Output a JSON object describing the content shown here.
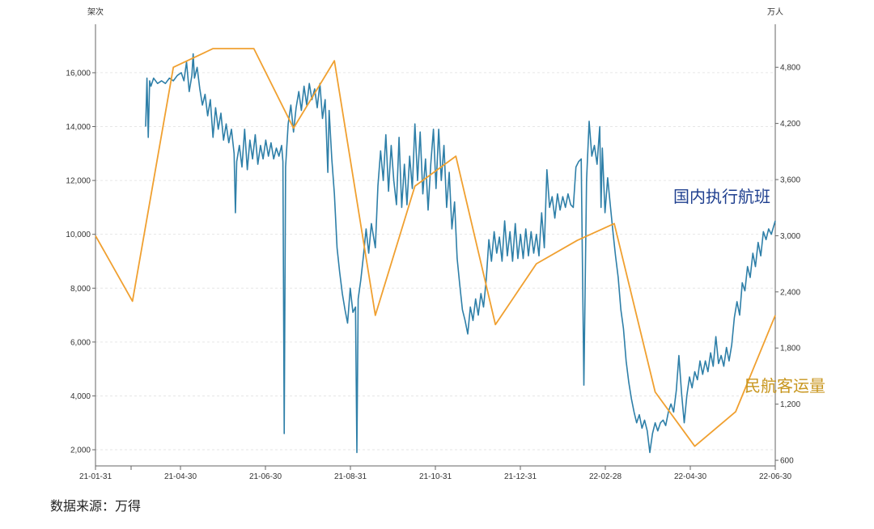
{
  "chart_data": {
    "type": "line",
    "left_axis": {
      "unit": "架次",
      "ticks": [
        2000,
        4000,
        6000,
        8000,
        10000,
        12000,
        14000,
        16000
      ],
      "tick_labels": [
        "2,000",
        "4,000",
        "6,000",
        "8,000",
        "10,000",
        "12,000",
        "14,000",
        "16,000"
      ],
      "range": [
        1400,
        17800
      ]
    },
    "right_axis": {
      "unit": "万人",
      "ticks": [
        600,
        1200,
        1800,
        2400,
        3000,
        3600,
        4200,
        4800
      ],
      "tick_labels": [
        "600",
        "1,200",
        "1,800",
        "2,400",
        "3,000",
        "3,600",
        "4,200",
        "4,800"
      ],
      "range": [
        540,
        5260
      ]
    },
    "x_tick_labels": [
      "21-01-31",
      "21-04-30",
      "21-06-30",
      "21-08-31",
      "21-10-31",
      "21-12-31",
      "22-02-28",
      "22-04-30",
      "22-06-30"
    ],
    "x_range": [
      "2021-01-31",
      "2022-06-30"
    ],
    "series": [
      {
        "name": "国内执行航班",
        "axis": "left",
        "color": "#2e7fa8",
        "points": [
          [
            "2021-03-10",
            14000
          ],
          [
            "2021-03-11",
            15800
          ],
          [
            "2021-03-12",
            13600
          ],
          [
            "2021-03-13",
            15700
          ],
          [
            "2021-03-14",
            15500
          ],
          [
            "2021-03-16",
            15800
          ],
          [
            "2021-03-19",
            15600
          ],
          [
            "2021-03-22",
            15700
          ],
          [
            "2021-03-25",
            15600
          ],
          [
            "2021-03-28",
            15800
          ],
          [
            "2021-03-31",
            15700
          ],
          [
            "2021-04-03",
            15900
          ],
          [
            "2021-04-06",
            16000
          ],
          [
            "2021-04-08",
            15700
          ],
          [
            "2021-04-10",
            16400
          ],
          [
            "2021-04-12",
            15300
          ],
          [
            "2021-04-14",
            15900
          ],
          [
            "2021-04-15",
            16700
          ],
          [
            "2021-04-16",
            15800
          ],
          [
            "2021-04-18",
            16200
          ],
          [
            "2021-04-20",
            15400
          ],
          [
            "2021-04-22",
            14800
          ],
          [
            "2021-04-24",
            15200
          ],
          [
            "2021-04-26",
            14400
          ],
          [
            "2021-04-28",
            15000
          ],
          [
            "2021-04-30",
            13600
          ],
          [
            "2021-05-02",
            14700
          ],
          [
            "2021-05-04",
            13900
          ],
          [
            "2021-05-06",
            14500
          ],
          [
            "2021-05-08",
            13500
          ],
          [
            "2021-05-10",
            14100
          ],
          [
            "2021-05-12",
            13400
          ],
          [
            "2021-05-14",
            13900
          ],
          [
            "2021-05-16",
            13000
          ],
          [
            "2021-05-17",
            10800
          ],
          [
            "2021-05-18",
            12700
          ],
          [
            "2021-05-20",
            13300
          ],
          [
            "2021-05-22",
            12500
          ],
          [
            "2021-05-24",
            13900
          ],
          [
            "2021-05-26",
            12400
          ],
          [
            "2021-05-28",
            13500
          ],
          [
            "2021-05-30",
            12800
          ],
          [
            "2021-06-01",
            13700
          ],
          [
            "2021-06-03",
            12600
          ],
          [
            "2021-06-05",
            13300
          ],
          [
            "2021-06-07",
            12800
          ],
          [
            "2021-06-09",
            13500
          ],
          [
            "2021-06-11",
            12900
          ],
          [
            "2021-06-13",
            13400
          ],
          [
            "2021-06-15",
            12800
          ],
          [
            "2021-06-17",
            13200
          ],
          [
            "2021-06-19",
            12900
          ],
          [
            "2021-06-21",
            13300
          ],
          [
            "2021-06-22",
            12700
          ],
          [
            "2021-06-23",
            2600
          ],
          [
            "2021-06-24",
            12500
          ],
          [
            "2021-06-26",
            14100
          ],
          [
            "2021-06-28",
            14800
          ],
          [
            "2021-06-30",
            13800
          ],
          [
            "2021-07-02",
            14700
          ],
          [
            "2021-07-04",
            15300
          ],
          [
            "2021-07-06",
            14600
          ],
          [
            "2021-07-08",
            15500
          ],
          [
            "2021-07-10",
            14800
          ],
          [
            "2021-07-12",
            15600
          ],
          [
            "2021-07-14",
            15000
          ],
          [
            "2021-07-16",
            15400
          ],
          [
            "2021-07-18",
            14700
          ],
          [
            "2021-07-20",
            15600
          ],
          [
            "2021-07-22",
            14300
          ],
          [
            "2021-07-24",
            15000
          ],
          [
            "2021-07-26",
            12300
          ],
          [
            "2021-07-27",
            14600
          ],
          [
            "2021-07-29",
            12800
          ],
          [
            "2021-07-31",
            11500
          ],
          [
            "2021-08-02",
            9500
          ],
          [
            "2021-08-04",
            8600
          ],
          [
            "2021-08-06",
            7800
          ],
          [
            "2021-08-08",
            7200
          ],
          [
            "2021-08-10",
            6700
          ],
          [
            "2021-08-12",
            8000
          ],
          [
            "2021-08-14",
            7100
          ],
          [
            "2021-08-16",
            7300
          ],
          [
            "2021-08-17",
            1900
          ],
          [
            "2021-08-18",
            7600
          ],
          [
            "2021-08-20",
            8300
          ],
          [
            "2021-08-22",
            9200
          ],
          [
            "2021-08-24",
            10200
          ],
          [
            "2021-08-26",
            9300
          ],
          [
            "2021-08-28",
            10400
          ],
          [
            "2021-08-31",
            9500
          ],
          [
            "2021-09-02",
            11800
          ],
          [
            "2021-09-04",
            13100
          ],
          [
            "2021-09-06",
            12000
          ],
          [
            "2021-09-08",
            13700
          ],
          [
            "2021-09-10",
            11600
          ],
          [
            "2021-09-12",
            13300
          ],
          [
            "2021-09-14",
            12000
          ],
          [
            "2021-09-16",
            11100
          ],
          [
            "2021-09-18",
            13600
          ],
          [
            "2021-09-20",
            11000
          ],
          [
            "2021-09-22",
            12600
          ],
          [
            "2021-09-24",
            11100
          ],
          [
            "2021-09-26",
            12900
          ],
          [
            "2021-09-28",
            11700
          ],
          [
            "2021-09-30",
            14100
          ],
          [
            "2021-10-02",
            12000
          ],
          [
            "2021-10-04",
            13800
          ],
          [
            "2021-10-06",
            11500
          ],
          [
            "2021-10-08",
            12800
          ],
          [
            "2021-10-10",
            10900
          ],
          [
            "2021-10-12",
            12600
          ],
          [
            "2021-10-14",
            13900
          ],
          [
            "2021-10-16",
            11700
          ],
          [
            "2021-10-18",
            13900
          ],
          [
            "2021-10-20",
            12000
          ],
          [
            "2021-10-22",
            13300
          ],
          [
            "2021-10-24",
            11000
          ],
          [
            "2021-10-26",
            12300
          ],
          [
            "2021-10-28",
            10200
          ],
          [
            "2021-10-30",
            11200
          ],
          [
            "2021-11-01",
            9100
          ],
          [
            "2021-11-03",
            8100
          ],
          [
            "2021-11-05",
            7200
          ],
          [
            "2021-11-07",
            6800
          ],
          [
            "2021-11-09",
            6300
          ],
          [
            "2021-11-11",
            7300
          ],
          [
            "2021-11-13",
            6800
          ],
          [
            "2021-11-15",
            7600
          ],
          [
            "2021-11-17",
            7000
          ],
          [
            "2021-11-19",
            7800
          ],
          [
            "2021-11-21",
            7300
          ],
          [
            "2021-11-23",
            8300
          ],
          [
            "2021-11-25",
            9800
          ],
          [
            "2021-11-27",
            9000
          ],
          [
            "2021-11-29",
            10100
          ],
          [
            "2021-12-01",
            9300
          ],
          [
            "2021-12-03",
            9900
          ],
          [
            "2021-12-05",
            9000
          ],
          [
            "2021-12-07",
            10500
          ],
          [
            "2021-12-09",
            9200
          ],
          [
            "2021-12-11",
            10100
          ],
          [
            "2021-12-13",
            9000
          ],
          [
            "2021-12-15",
            10400
          ],
          [
            "2021-12-17",
            9100
          ],
          [
            "2021-12-19",
            10000
          ],
          [
            "2021-12-21",
            9100
          ],
          [
            "2021-12-23",
            10200
          ],
          [
            "2021-12-25",
            9200
          ],
          [
            "2021-12-27",
            10100
          ],
          [
            "2021-12-29",
            9300
          ],
          [
            "2021-12-31",
            10000
          ],
          [
            "2022-01-02",
            9200
          ],
          [
            "2022-01-04",
            10800
          ],
          [
            "2022-01-06",
            9500
          ],
          [
            "2022-01-08",
            12400
          ],
          [
            "2022-01-10",
            11000
          ],
          [
            "2022-01-12",
            11400
          ],
          [
            "2022-01-14",
            10600
          ],
          [
            "2022-01-16",
            11500
          ],
          [
            "2022-01-18",
            10900
          ],
          [
            "2022-01-20",
            11400
          ],
          [
            "2022-01-22",
            11000
          ],
          [
            "2022-01-24",
            11500
          ],
          [
            "2022-01-26",
            11100
          ],
          [
            "2022-01-28",
            11000
          ],
          [
            "2022-01-30",
            12500
          ],
          [
            "2022-02-01",
            12700
          ],
          [
            "2022-02-03",
            12800
          ],
          [
            "2022-02-05",
            4400
          ],
          [
            "2022-02-07",
            12000
          ],
          [
            "2022-02-09",
            14200
          ],
          [
            "2022-02-11",
            12900
          ],
          [
            "2022-02-13",
            13300
          ],
          [
            "2022-02-15",
            12600
          ],
          [
            "2022-02-17",
            14000
          ],
          [
            "2022-02-18",
            11000
          ],
          [
            "2022-02-19",
            13200
          ],
          [
            "2022-02-21",
            10800
          ],
          [
            "2022-02-23",
            12100
          ],
          [
            "2022-02-25",
            11100
          ],
          [
            "2022-02-27",
            10100
          ],
          [
            "2022-03-01",
            9200
          ],
          [
            "2022-03-03",
            8400
          ],
          [
            "2022-03-05",
            7200
          ],
          [
            "2022-03-07",
            6500
          ],
          [
            "2022-03-09",
            5300
          ],
          [
            "2022-03-11",
            4500
          ],
          [
            "2022-03-13",
            3900
          ],
          [
            "2022-03-15",
            3400
          ],
          [
            "2022-03-17",
            3000
          ],
          [
            "2022-03-19",
            3300
          ],
          [
            "2022-03-21",
            2800
          ],
          [
            "2022-03-23",
            3100
          ],
          [
            "2022-03-25",
            2700
          ],
          [
            "2022-03-27",
            1900
          ],
          [
            "2022-03-29",
            2600
          ],
          [
            "2022-03-31",
            3000
          ],
          [
            "2022-04-02",
            2700
          ],
          [
            "2022-04-04",
            3000
          ],
          [
            "2022-04-06",
            3100
          ],
          [
            "2022-04-08",
            2900
          ],
          [
            "2022-04-10",
            3400
          ],
          [
            "2022-04-12",
            3700
          ],
          [
            "2022-04-14",
            3400
          ],
          [
            "2022-04-16",
            4200
          ],
          [
            "2022-04-18",
            5500
          ],
          [
            "2022-04-20",
            4100
          ],
          [
            "2022-04-22",
            3000
          ],
          [
            "2022-04-24",
            4000
          ],
          [
            "2022-04-26",
            4700
          ],
          [
            "2022-04-28",
            4300
          ],
          [
            "2022-04-30",
            4900
          ],
          [
            "2022-05-02",
            4600
          ],
          [
            "2022-05-04",
            5300
          ],
          [
            "2022-05-06",
            4800
          ],
          [
            "2022-05-08",
            5300
          ],
          [
            "2022-05-10",
            4900
          ],
          [
            "2022-05-12",
            5600
          ],
          [
            "2022-05-14",
            5100
          ],
          [
            "2022-05-16",
            6200
          ],
          [
            "2022-05-18",
            5200
          ],
          [
            "2022-05-20",
            5500
          ],
          [
            "2022-05-22",
            5100
          ],
          [
            "2022-05-24",
            5800
          ],
          [
            "2022-05-26",
            5300
          ],
          [
            "2022-05-28",
            5900
          ],
          [
            "2022-05-30",
            6900
          ],
          [
            "2022-06-01",
            7500
          ],
          [
            "2022-06-03",
            7000
          ],
          [
            "2022-06-05",
            8200
          ],
          [
            "2022-06-07",
            7900
          ],
          [
            "2022-06-09",
            8800
          ],
          [
            "2022-06-11",
            8400
          ],
          [
            "2022-06-13",
            9300
          ],
          [
            "2022-06-15",
            8800
          ],
          [
            "2022-06-17",
            9700
          ],
          [
            "2022-06-19",
            9200
          ],
          [
            "2022-06-21",
            10100
          ],
          [
            "2022-06-23",
            9800
          ],
          [
            "2022-06-25",
            10200
          ],
          [
            "2022-06-27",
            10000
          ],
          [
            "2022-06-30",
            10500
          ]
        ]
      },
      {
        "name": "民航客运量",
        "axis": "right",
        "color": "#f0a030",
        "points": [
          [
            "2021-01-31",
            3000
          ],
          [
            "2021-02-28",
            2300
          ],
          [
            "2021-03-31",
            4800
          ],
          [
            "2021-04-30",
            5000
          ],
          [
            "2021-05-31",
            5000
          ],
          [
            "2021-06-30",
            4150
          ],
          [
            "2021-07-31",
            4870
          ],
          [
            "2021-08-31",
            2150
          ],
          [
            "2021-09-30",
            3530
          ],
          [
            "2021-10-31",
            3850
          ],
          [
            "2021-11-30",
            2050
          ],
          [
            "2021-12-31",
            2700
          ],
          [
            "2022-01-31",
            2950
          ],
          [
            "2022-02-28",
            3130
          ],
          [
            "2022-03-31",
            1330
          ],
          [
            "2022-04-30",
            750
          ],
          [
            "2022-05-31",
            1120
          ],
          [
            "2022-06-30",
            2150
          ]
        ]
      }
    ]
  },
  "labels": {
    "series_a": "国内执行航班",
    "series_b": "民航客运量"
  },
  "source": "数据来源：万得"
}
